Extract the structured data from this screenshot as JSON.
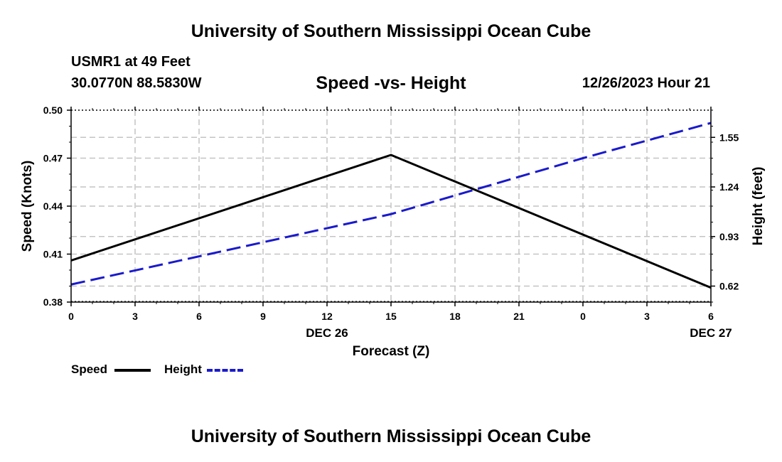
{
  "header": {
    "title": "University of Southern Mississippi Ocean Cube",
    "station": "USMR1 at 49 Feet",
    "coords": "30.0770N  88.5830W",
    "datetime": "12/26/2023 Hour 21",
    "footer_title": "University of Southern Mississippi Ocean Cube"
  },
  "colors": {
    "speed": "#000000",
    "height": "#1a1acc",
    "grid": "#c4c4c4"
  },
  "legend": {
    "speed_label": "Speed",
    "height_label": "Height"
  },
  "chart_data": {
    "type": "line",
    "title": "Speed -vs- Height",
    "xlabel": "Forecast (Z)",
    "ylabel": "Speed (Knots)",
    "y2label": "Height (feet)",
    "x_ticks": [
      "0",
      "3",
      "6",
      "9",
      "12",
      "15",
      "18",
      "21",
      "0",
      "3",
      "6"
    ],
    "x_dates": [
      {
        "label": "DEC 26",
        "hour": 12
      },
      {
        "label": "DEC 27",
        "hour": 30
      }
    ],
    "xlim": [
      0,
      30
    ],
    "ylim": [
      0.38,
      0.5
    ],
    "y_ticks": [
      "0.50",
      "0.47",
      "0.44",
      "0.41",
      "0.38"
    ],
    "y2lim": [
      0.52,
      1.72
    ],
    "y2_ticks": [
      "1.55",
      "1.24",
      "0.93",
      "0.62"
    ],
    "series": [
      {
        "name": "Speed",
        "axis": "left",
        "style": "solid",
        "x": [
          0,
          15,
          30
        ],
        "values": [
          0.406,
          0.472,
          0.389
        ]
      },
      {
        "name": "Height",
        "axis": "right",
        "style": "dashed",
        "x": [
          0,
          15,
          24,
          30
        ],
        "values": [
          0.63,
          1.07,
          1.42,
          1.64
        ]
      }
    ]
  }
}
